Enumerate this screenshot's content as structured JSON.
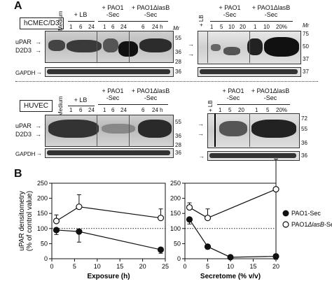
{
  "panels": {
    "a": "A",
    "b": "B"
  },
  "cells": {
    "top": "hCMEC/D3",
    "bottom": "HUVEC"
  },
  "blot_labels": {
    "upar": "uPAR",
    "d2d3": "D2D3",
    "gapdh": "GAPDH",
    "mr": "Mr",
    "medium": "Medium",
    "lb_plus": "+ LB",
    "lb": "LB",
    "pao1_top": "+ PAO1",
    "pao1_bottom": "-Sec",
    "lasb_top": "+ PAO1ΔlasB",
    "lasb_bottom": "-Sec"
  },
  "time_ticks": [
    "1",
    "6",
    "24",
    "1",
    "6",
    "24",
    "6",
    "24 h"
  ],
  "time_ticks_huvec": [
    "1",
    "6",
    "24",
    "1",
    "6",
    "24",
    "6",
    "24 h"
  ],
  "conc_ticks_top": [
    "1",
    "5",
    "10",
    "20",
    "1",
    "10",
    "20%"
  ],
  "conc_ticks_bottom": [
    "1",
    "5",
    "20",
    "1",
    "5",
    "20%"
  ],
  "mw_top_left": [
    "55",
    "36",
    "28",
    "36"
  ],
  "mw_top_right": [
    "75",
    "50",
    "37",
    "37"
  ],
  "mw_bottom_left": [
    "55",
    "36",
    "28",
    "36"
  ],
  "mw_bottom_right": [
    "72",
    "55",
    "36",
    "36"
  ],
  "chart_data": [
    {
      "type": "line",
      "ylabel": "uPAR densitometry\n(% of control value)",
      "ylabel_line1": "uPAR densitometry",
      "ylabel_line2": "(% of control value)",
      "xlabel": "Exposure (h)",
      "xlim": [
        0,
        25
      ],
      "ylim": [
        0,
        250
      ],
      "xticks": [
        0,
        5,
        10,
        15,
        20,
        25
      ],
      "yticks": [
        0,
        50,
        100,
        150,
        200,
        250
      ],
      "reference_line": 100,
      "series": [
        {
          "name": "PAO1-Sec",
          "marker": "filled",
          "x": [
            1,
            6,
            24
          ],
          "y": [
            95,
            90,
            30
          ],
          "err": [
            15,
            35,
            12
          ]
        },
        {
          "name": "PAO1ΔlasB-Sec",
          "marker": "open",
          "x": [
            1,
            6,
            24
          ],
          "y": [
            125,
            172,
            135
          ],
          "err": [
            20,
            40,
            30
          ]
        }
      ]
    },
    {
      "type": "line",
      "xlabel": "Secretome (% v/v)",
      "xlim": [
        0,
        20
      ],
      "ylim": [
        0,
        250
      ],
      "xticks": [
        0,
        5,
        10,
        15,
        20
      ],
      "reference_line": 100,
      "series": [
        {
          "name": "PAO1-Sec",
          "marker": "filled",
          "x": [
            1,
            5,
            10,
            20
          ],
          "y": [
            130,
            40,
            5,
            8
          ],
          "err": [
            15,
            8,
            3,
            10
          ]
        },
        {
          "name": "PAO1ΔlasB-Sec",
          "marker": "open",
          "x": [
            1,
            5,
            20
          ],
          "y": [
            170,
            135,
            230
          ],
          "err": [
            15,
            30,
            100
          ]
        }
      ]
    }
  ],
  "legend": [
    {
      "label": "PAO1-Sec",
      "marker": "filled"
    },
    {
      "label_a": "PAO1",
      "label_b": "ΔlasB",
      "label_c": "-Sec",
      "marker": "open"
    }
  ]
}
